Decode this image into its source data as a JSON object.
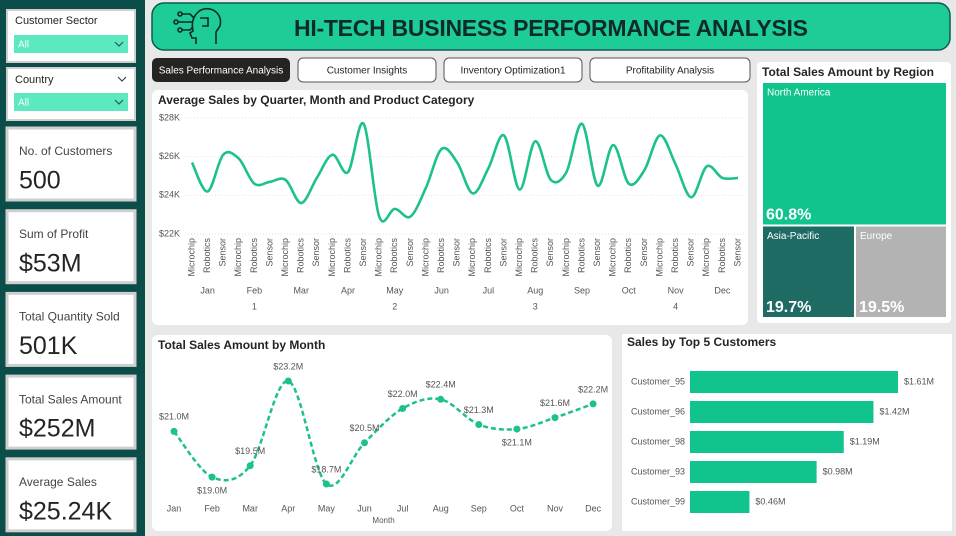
{
  "header": {
    "title": "HI-TECH BUSINESS PERFORMANCE ANALYSIS"
  },
  "filters": [
    {
      "label": "Customer Sector",
      "value": "All"
    },
    {
      "label": "Country",
      "value": "All"
    }
  ],
  "kpis": [
    {
      "label": "No. of Customers",
      "value": "500"
    },
    {
      "label": "Sum of Profit",
      "value": "$53M"
    },
    {
      "label": "Total Quantity Sold",
      "value": "501K"
    },
    {
      "label": "Total Sales Amount",
      "value": "$252M"
    },
    {
      "label": "Average Sales",
      "value": "$25.24K"
    }
  ],
  "tabs": [
    "Sales Performance Analysis",
    "Customer Insights",
    "Inventory Optimization1",
    "Profitability Analysis"
  ],
  "chart_data": [
    {
      "type": "line",
      "title": "Average Sales by Quarter, Month and Product Category",
      "categories": [
        "Microchip",
        "Robotics",
        "Sensor",
        "Microchip",
        "Robotics",
        "Sensor",
        "Microchip",
        "Robotics",
        "Sensor",
        "Microchip",
        "Robotics",
        "Sensor",
        "Microchip",
        "Robotics",
        "Sensor",
        "Microchip",
        "Robotics",
        "Sensor",
        "Microchip",
        "Robotics",
        "Sensor",
        "Microchip",
        "Robotics",
        "Sensor",
        "Microchip",
        "Robotics",
        "Sensor",
        "Microchip",
        "Robotics",
        "Sensor",
        "Microchip",
        "Robotics",
        "Sensor",
        "Microchip",
        "Robotics",
        "Sensor"
      ],
      "months": [
        "Jan",
        "Feb",
        "Mar",
        "Apr",
        "May",
        "Jun",
        "Jul",
        "Aug",
        "Sep",
        "Oct",
        "Nov",
        "Dec"
      ],
      "quarters": [
        "1",
        "2",
        "3",
        "4"
      ],
      "values": [
        25700,
        24200,
        26100,
        25900,
        24600,
        24700,
        24800,
        23600,
        24900,
        26100,
        25200,
        27700,
        22900,
        23300,
        22900,
        24400,
        26400,
        25700,
        24100,
        25400,
        27100,
        24300,
        26800,
        24800,
        25200,
        27700,
        24500,
        26600,
        24600,
        25300,
        27100,
        25600,
        23900,
        25500,
        24900,
        24900
      ],
      "color": "#1cc18c",
      "ylim": [
        22000,
        28000
      ],
      "yticks": [
        {
          "value": 22000,
          "label": "$22K"
        },
        {
          "value": 24000,
          "label": "$24K"
        },
        {
          "value": 26000,
          "label": "$26K"
        },
        {
          "value": 28000,
          "label": "$28K"
        }
      ],
      "grid": true
    },
    {
      "type": "treemap",
      "title": "Total Sales Amount by Region",
      "categories": [
        "North America",
        "Asia-Pacific",
        "Europe"
      ],
      "values": [
        60.8,
        19.7,
        19.5
      ],
      "value_labels": [
        "60.8%",
        "19.7%",
        "19.5%"
      ],
      "colors": [
        "#11c48e",
        "#1e6b63",
        "#b3b3b3"
      ]
    },
    {
      "type": "line",
      "title": "Total Sales Amount by Month",
      "categories": [
        "Jan",
        "Feb",
        "Mar",
        "Apr",
        "May",
        "Jun",
        "Jul",
        "Aug",
        "Sep",
        "Oct",
        "Nov",
        "Dec"
      ],
      "values": [
        21.0,
        19.0,
        19.5,
        23.2,
        18.7,
        20.5,
        22.0,
        22.4,
        21.3,
        21.1,
        21.6,
        22.2
      ],
      "value_labels": [
        "$21.0M",
        "$19.0M",
        "$19.5M",
        "$23.2M",
        "$18.7M",
        "$20.5M",
        "$22.0M",
        "$22.4M",
        "$21.3M",
        "$21.1M",
        "$21.6M",
        "$22.2M"
      ],
      "x_label": "Month",
      "color": "#1cc18c",
      "line_style": "dashed",
      "markers": true
    },
    {
      "type": "bar",
      "orientation": "horizontal",
      "title": "Sales by Top 5 Customers",
      "categories": [
        "Customer_95",
        "Customer_96",
        "Customer_98",
        "Customer_93",
        "Customer_99"
      ],
      "values": [
        1.61,
        1.42,
        1.19,
        0.98,
        0.46
      ],
      "value_labels": [
        "$1.61M",
        "$1.42M",
        "$1.19M",
        "$0.98M",
        "$0.46M"
      ],
      "color": "#11c48e"
    }
  ]
}
